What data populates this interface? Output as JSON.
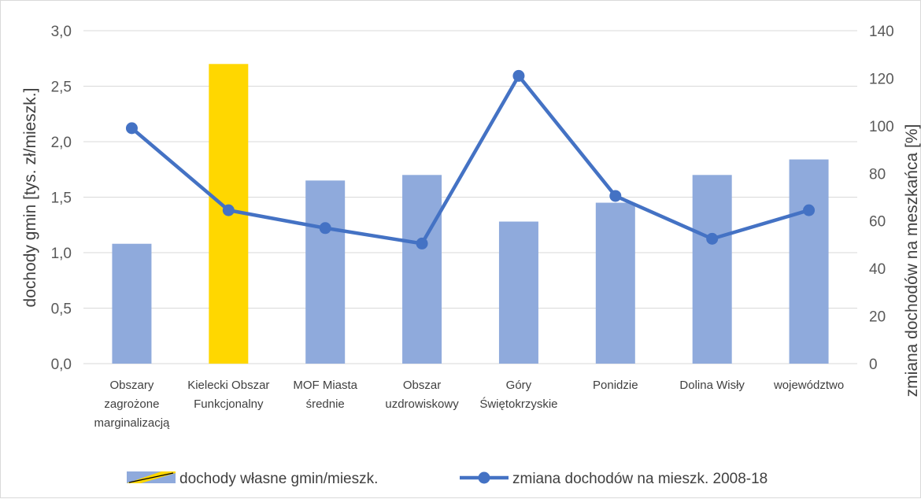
{
  "chart_data": {
    "type": "bar",
    "categories": [
      [
        "Obszary",
        "zagrożone",
        "marginalizacją"
      ],
      [
        "Kielecki Obszar",
        "Funkcjonalny"
      ],
      [
        "MOF Miasta",
        "średnie"
      ],
      [
        "Obszar",
        "uzdrowiskowy"
      ],
      [
        "Góry",
        "Świętokrzyskie"
      ],
      [
        "Ponidzie"
      ],
      [
        "Dolina Wisły"
      ],
      [
        "województwo"
      ]
    ],
    "series": [
      {
        "name": "dochody własne gmin/mieszk.",
        "type": "bar",
        "axis": "left",
        "values": [
          1.08,
          2.7,
          1.65,
          1.7,
          1.28,
          1.45,
          1.7,
          1.84
        ]
      },
      {
        "name": "zmiana dochodów na mieszk. 2008-18",
        "type": "line",
        "axis": "right",
        "values": [
          99,
          64.5,
          57,
          50.5,
          121,
          70.5,
          52.5,
          64.5
        ]
      }
    ],
    "highlight_index": 1,
    "ylabel": "dochody gmin [tys. zł/mieszk.]",
    "y2label": "zmiana dochodów na meszkańca [%]",
    "ylim": [
      0,
      3.0
    ],
    "y2lim": [
      0,
      140
    ],
    "yticks": [
      "0,0",
      "0,5",
      "1,0",
      "1,5",
      "2,0",
      "2,5",
      "3,0"
    ],
    "y2ticks": [
      "0",
      "20",
      "40",
      "60",
      "80",
      "100",
      "120",
      "140"
    ],
    "grid": true,
    "legend_position": "bottom",
    "colors": {
      "bar": "#8faadc",
      "highlight": "#ffd700",
      "line": "#4472c4",
      "grid": "#d9d9d9"
    }
  }
}
